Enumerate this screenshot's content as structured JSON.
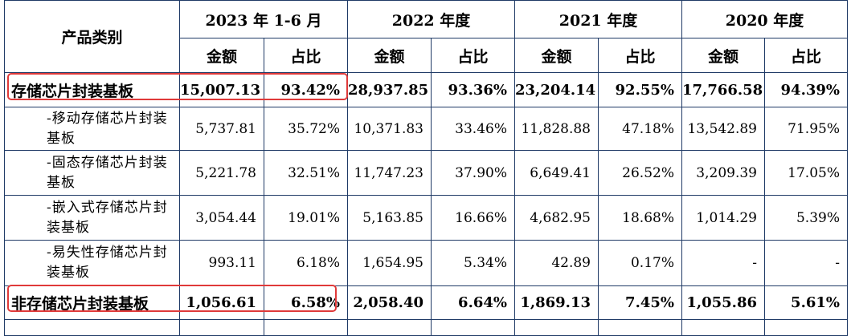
{
  "header": {
    "category": "产品类别",
    "periods": [
      "2023 年 1-6 月",
      "2022 年度",
      "2021 年度",
      "2020 年度"
    ],
    "amount": "金额",
    "ratio": "占比"
  },
  "rows": [
    {
      "label": "存储芯片封装基板",
      "values": [
        "15,007.13",
        "93.42%",
        "28,937.85",
        "93.36%",
        "23,204.14",
        "92.55%",
        "17,766.58",
        "94.39%"
      ]
    },
    {
      "label": "-移动存储芯片封装基板",
      "values": [
        "5,737.81",
        "35.72%",
        "10,371.83",
        "33.46%",
        "11,828.88",
        "47.18%",
        "13,542.89",
        "71.95%"
      ]
    },
    {
      "label": "-固态存储芯片封装基板",
      "values": [
        "5,221.78",
        "32.51%",
        "11,747.23",
        "37.90%",
        "6,649.41",
        "26.52%",
        "3,209.39",
        "17.05%"
      ]
    },
    {
      "label": "-嵌入式存储芯片封装基板",
      "values": [
        "3,054.44",
        "19.01%",
        "5,163.85",
        "16.66%",
        "4,682.95",
        "18.68%",
        "1,014.29",
        "5.39%"
      ]
    },
    {
      "label": "-易失性存储芯片封装基板",
      "values": [
        "993.11",
        "6.18%",
        "1,654.95",
        "5.34%",
        "42.89",
        "0.17%",
        "-",
        "-"
      ]
    },
    {
      "label": "非存储芯片封装基板",
      "values": [
        "1,056.61",
        "6.58%",
        "2,058.40",
        "6.64%",
        "1,869.13",
        "7.45%",
        "1,055.86",
        "5.61%"
      ]
    }
  ]
}
